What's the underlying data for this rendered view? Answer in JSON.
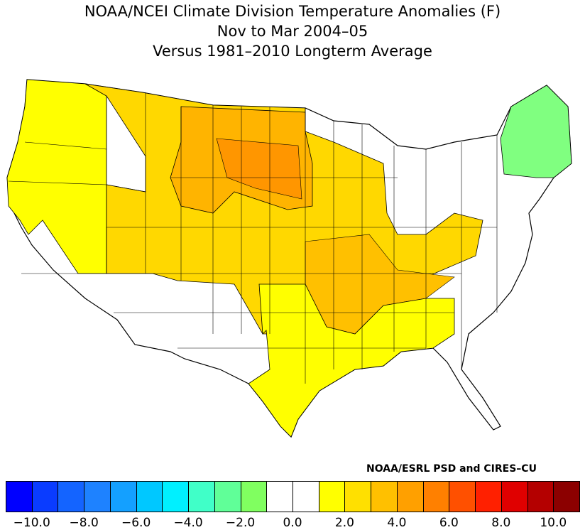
{
  "title": {
    "line1": "NOAA/NCEI Climate Division Temperature Anomalies (F)",
    "line2": "Nov to Mar 2004–05",
    "line3": "Versus 1981–2010 Longterm Average"
  },
  "credit": "NOAA/ESRL PSD and CIRES–CU",
  "colors": {
    "neg_light_green": "#80ff80",
    "neutral": "#ffffff",
    "pos_1": "#ffff00",
    "pos_2": "#ffd800",
    "pos_3": "#ffb400",
    "pos_4": "#ff9600",
    "state_line": "#000000"
  },
  "legend": {
    "bins": [
      {
        "from": -11.0,
        "to": -10.0,
        "color": "#0000ff"
      },
      {
        "from": -10.0,
        "to": -9.0,
        "color": "#0a3cff"
      },
      {
        "from": -9.0,
        "to": -8.0,
        "color": "#1464ff"
      },
      {
        "from": -8.0,
        "to": -7.0,
        "color": "#1e82ff"
      },
      {
        "from": -7.0,
        "to": -6.0,
        "color": "#14a0ff"
      },
      {
        "from": -6.0,
        "to": -5.0,
        "color": "#00c8ff"
      },
      {
        "from": -5.0,
        "to": -4.0,
        "color": "#00f0ff"
      },
      {
        "from": -4.0,
        "to": -3.0,
        "color": "#40ffc8"
      },
      {
        "from": -3.0,
        "to": -2.0,
        "color": "#60ff98"
      },
      {
        "from": -2.0,
        "to": -1.0,
        "color": "#80ff60"
      },
      {
        "from": -1.0,
        "to": 0.0,
        "color": "#ffffff"
      },
      {
        "from": 0.0,
        "to": 1.0,
        "color": "#ffffff"
      },
      {
        "from": 1.0,
        "to": 2.0,
        "color": "#ffff00"
      },
      {
        "from": 2.0,
        "to": 3.0,
        "color": "#ffe000"
      },
      {
        "from": 3.0,
        "to": 4.0,
        "color": "#ffc000"
      },
      {
        "from": 4.0,
        "to": 5.0,
        "color": "#ffa000"
      },
      {
        "from": 5.0,
        "to": 6.0,
        "color": "#ff8000"
      },
      {
        "from": 6.0,
        "to": 7.0,
        "color": "#ff5000"
      },
      {
        "from": 7.0,
        "to": 8.0,
        "color": "#ff2000"
      },
      {
        "from": 8.0,
        "to": 9.0,
        "color": "#e00000"
      },
      {
        "from": 9.0,
        "to": 10.0,
        "color": "#b40000"
      },
      {
        "from": 10.0,
        "to": 11.0,
        "color": "#8c0000"
      }
    ],
    "tick_labels": [
      "−10.0",
      "−8.0",
      "−6.0",
      "−4.0",
      "−2.0",
      "0.0",
      "2.0",
      "4.0",
      "6.0",
      "8.0",
      "10.0"
    ]
  },
  "regions": [
    {
      "name": "pacific-northwest",
      "anomaly_bin": "1 to 2",
      "color": "#ffff00"
    },
    {
      "name": "northern-rockies-plains",
      "anomaly_bin": "3 to 4",
      "color": "#ffb400"
    },
    {
      "name": "central-plains-ozarks",
      "anomaly_bin": "2 to 3",
      "color": "#ffd800"
    },
    {
      "name": "south-central-southeast",
      "anomaly_bin": "1 to 2",
      "color": "#ffff00"
    },
    {
      "name": "new-england",
      "anomaly_bin": "-2 to -1",
      "color": "#80ff80"
    },
    {
      "name": "southwest-midatlantic-greatlakes",
      "anomaly_bin": "-1 to 1",
      "color": "#ffffff"
    }
  ]
}
